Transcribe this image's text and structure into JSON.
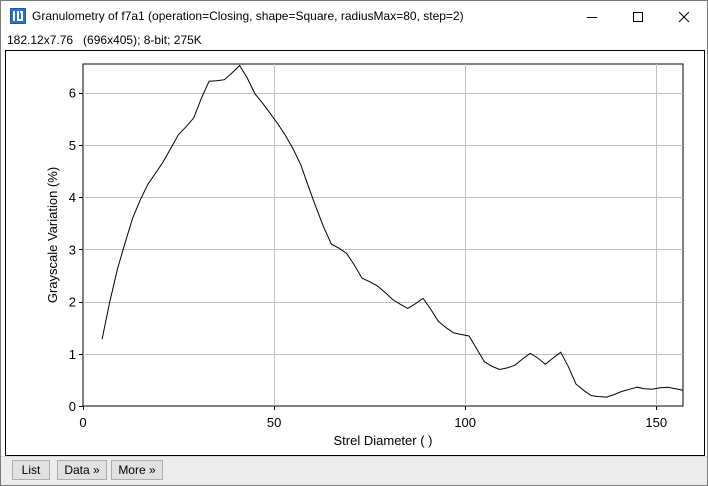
{
  "window": {
    "title": "Granulometry of f7a1 (operation=Closing, shape=Square, radiusMax=80, step=2)",
    "info": "182.12x7.76   (696x405); 8-bit; 275K"
  },
  "buttons": {
    "list": "List",
    "data": "Data »",
    "more": "More »"
  },
  "chart_data": {
    "type": "line",
    "title": "",
    "xlabel": "Strel Diameter ( )",
    "ylabel": "Grayscale Variation (%)",
    "xlim": [
      0,
      157
    ],
    "ylim": [
      0,
      6.55
    ],
    "x_ticks": [
      0,
      50,
      100,
      150
    ],
    "y_ticks": [
      0,
      1,
      2,
      3,
      4,
      5,
      6
    ],
    "grid": true,
    "legend": "none",
    "line_color": "#000000",
    "series": [
      {
        "x": [
          5,
          7,
          9,
          11,
          13,
          15,
          17,
          19,
          21,
          23,
          25,
          27,
          29,
          31,
          33,
          35,
          37,
          39,
          41,
          43,
          45,
          47,
          49,
          51,
          53,
          55,
          57,
          59,
          61,
          63,
          65,
          67,
          69,
          71,
          73,
          75,
          77,
          79,
          81,
          83,
          85,
          87,
          89,
          91,
          93,
          95,
          97,
          99,
          101,
          103,
          105,
          107,
          109,
          111,
          113,
          115,
          117,
          119,
          121,
          123,
          125,
          127,
          129,
          131,
          133,
          135,
          137,
          139,
          141,
          143,
          145,
          147,
          149,
          151,
          153,
          155,
          157
        ],
        "values": [
          1.28,
          2.0,
          2.62,
          3.12,
          3.6,
          3.95,
          4.25,
          4.46,
          4.68,
          4.94,
          5.2,
          5.35,
          5.52,
          5.9,
          6.22,
          6.23,
          6.25,
          6.38,
          6.52,
          6.28,
          5.98,
          5.8,
          5.6,
          5.4,
          5.18,
          4.92,
          4.62,
          4.2,
          3.8,
          3.42,
          3.1,
          3.02,
          2.92,
          2.7,
          2.45,
          2.38,
          2.3,
          2.18,
          2.04,
          1.95,
          1.87,
          1.96,
          2.06,
          1.85,
          1.62,
          1.5,
          1.4,
          1.37,
          1.34,
          1.1,
          0.85,
          0.76,
          0.7,
          0.73,
          0.78,
          0.9,
          1.01,
          0.92,
          0.8,
          0.92,
          1.03,
          0.75,
          0.42,
          0.3,
          0.2,
          0.18,
          0.17,
          0.22,
          0.28,
          0.32,
          0.36,
          0.33,
          0.32,
          0.35,
          0.36,
          0.33,
          0.3
        ]
      }
    ]
  }
}
